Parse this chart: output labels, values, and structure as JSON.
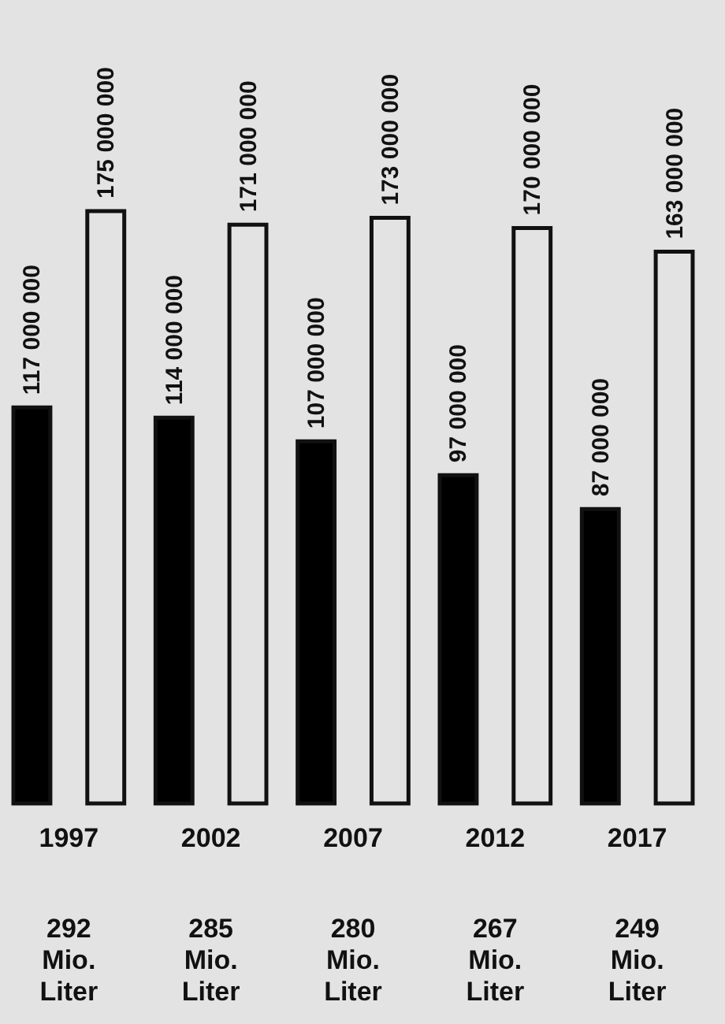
{
  "chart_data": {
    "type": "bar",
    "categories": [
      "1997",
      "2002",
      "2007",
      "2012",
      "2017"
    ],
    "series": [
      {
        "color": "#000000",
        "values": [
          117000000,
          114000000,
          107000000,
          97000000,
          87000000
        ],
        "value_labels": [
          "117 000 000",
          "114 000 000",
          "107 000 000",
          "97 000 000",
          "87 000 000"
        ]
      },
      {
        "color": "#e3e3e3",
        "values": [
          175000000,
          171000000,
          173000000,
          170000000,
          163000000
        ],
        "value_labels": [
          "175 000 000",
          "171 000 000",
          "173 000 000",
          "170 000 000",
          "163 000 000"
        ]
      }
    ],
    "annotations": [
      "292 Mio. Liter",
      "285 Mio. Liter",
      "280 Mio. Liter",
      "267 Mio. Liter",
      "249 Mio. Liter"
    ]
  }
}
